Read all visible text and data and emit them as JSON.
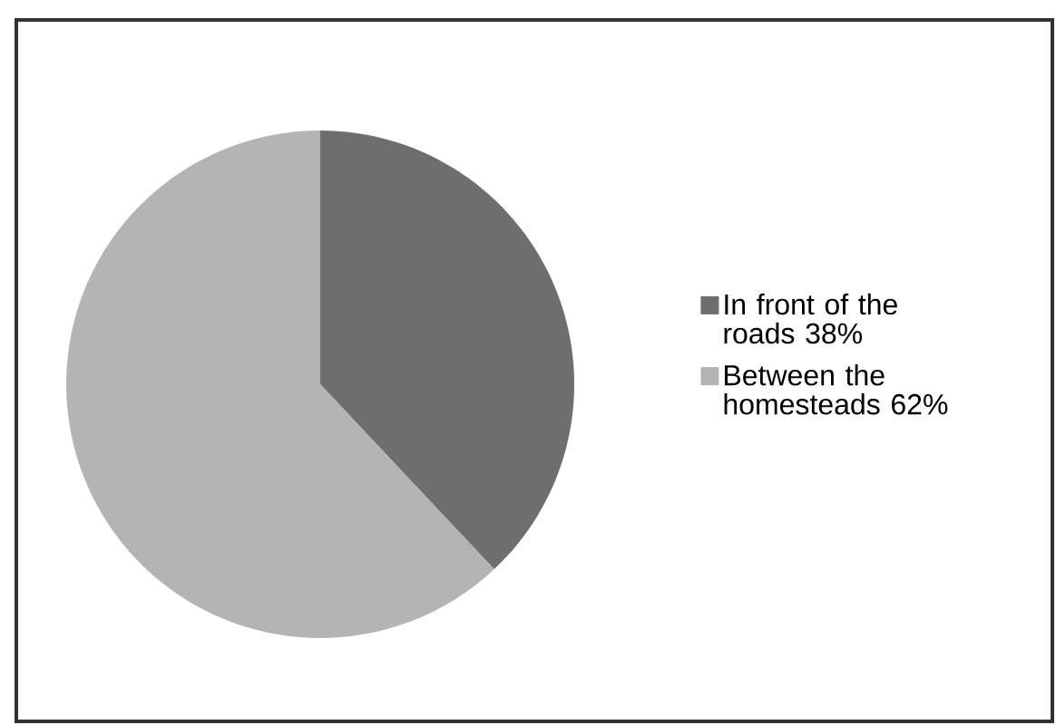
{
  "chart_data": {
    "type": "pie",
    "categories": [
      "In front of the roads",
      "Between the homesteads"
    ],
    "values": [
      38,
      62
    ],
    "value_labels": [
      "38%",
      "62%"
    ],
    "colors": [
      "#6e6e6e",
      "#b4b4b4"
    ],
    "legend": "right"
  }
}
